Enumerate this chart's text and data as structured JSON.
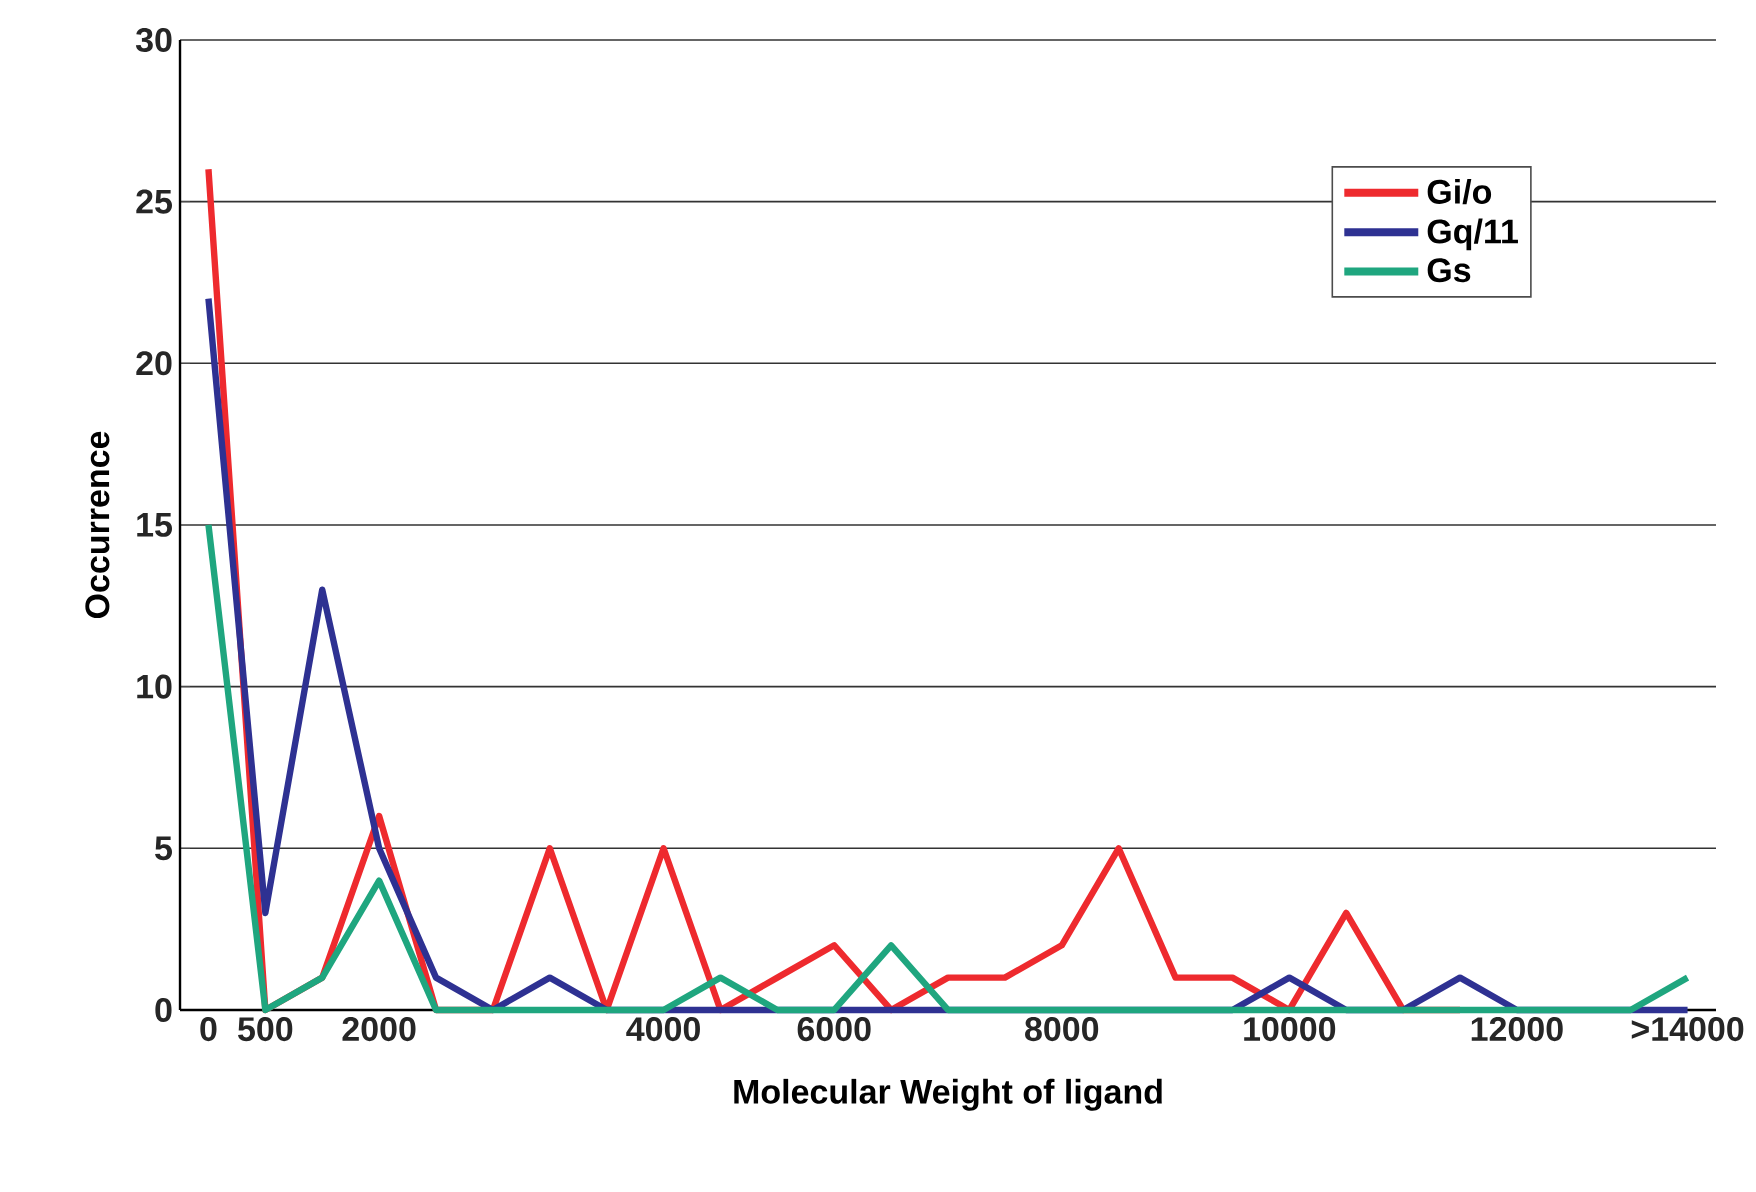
{
  "chart_data": {
    "type": "line",
    "xlabel": "Molecular Weight of ligand",
    "ylabel": "Occurrence",
    "categories": [
      "0",
      "500",
      null,
      "2000",
      null,
      null,
      null,
      null,
      "4000",
      null,
      null,
      "6000",
      null,
      null,
      null,
      "8000",
      null,
      null,
      null,
      "10000",
      null,
      null,
      null,
      "12000",
      null,
      null,
      ">14000"
    ],
    "series": [
      {
        "name": "Gi/o",
        "color": "#ee2a2e",
        "values": [
          26,
          0,
          1,
          6,
          0,
          0,
          5,
          0,
          5,
          0,
          1,
          2,
          0,
          1,
          1,
          2,
          5,
          1,
          1,
          0,
          3,
          0,
          0,
          null,
          null,
          null,
          null
        ]
      },
      {
        "name": "Gq/11",
        "color": "#2e3192",
        "values": [
          22,
          3,
          13,
          5,
          1,
          0,
          1,
          0,
          0,
          0,
          0,
          0,
          0,
          0,
          0,
          0,
          0,
          0,
          0,
          1,
          0,
          0,
          1,
          0,
          0,
          0,
          0
        ]
      },
      {
        "name": "Gs",
        "color": "#1fa67f",
        "values": [
          15,
          0,
          1,
          4,
          0,
          0,
          0,
          0,
          0,
          1,
          0,
          0,
          2,
          0,
          0,
          0,
          0,
          0,
          0,
          0,
          0,
          0,
          0,
          0,
          0,
          0,
          1
        ]
      }
    ],
    "ylim": [
      0,
      30
    ],
    "yticks": [
      0,
      5,
      10,
      15,
      20,
      25,
      30
    ],
    "grid": "y",
    "legend": "top right",
    "marker": "none",
    "line_style": "solid"
  }
}
